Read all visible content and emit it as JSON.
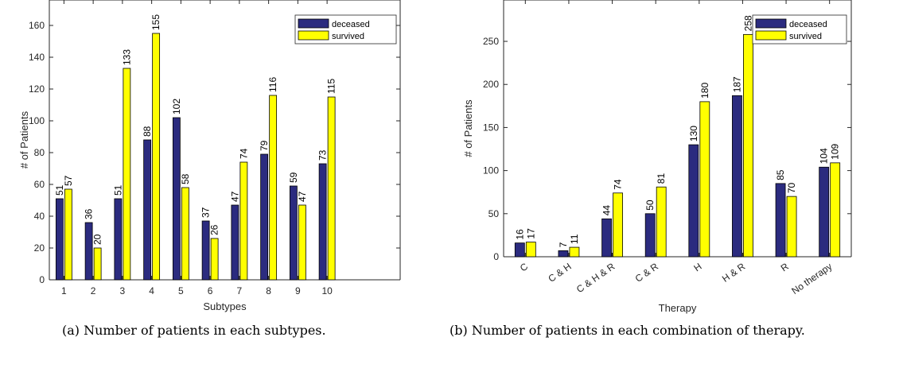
{
  "captions": {
    "a": "(a) Number of patients in each subtypes.",
    "b": "(b) Number of patients in each combination of therapy."
  },
  "colors": {
    "deceased": "#2b2b7f",
    "survived": "#ffff00"
  },
  "chart_data": [
    {
      "type": "bar",
      "categories": [
        "1",
        "2",
        "3",
        "4",
        "5",
        "6",
        "7",
        "8",
        "9",
        "10"
      ],
      "series": [
        {
          "name": "deceased",
          "values": [
            51,
            36,
            51,
            88,
            102,
            37,
            47,
            79,
            59,
            73
          ]
        },
        {
          "name": "survived",
          "values": [
            57,
            20,
            133,
            155,
            58,
            26,
            74,
            116,
            47,
            115
          ]
        }
      ],
      "xlabel": "Subtypes",
      "ylabel": "# of Patients",
      "ylim": [
        0,
        176
      ],
      "yticks": [
        0,
        20,
        40,
        60,
        80,
        100,
        120,
        140,
        160
      ],
      "legend_position": "top-right",
      "grid": false
    },
    {
      "type": "bar",
      "categories": [
        "C",
        "C & H",
        "C & H & R",
        "C & R",
        "H",
        "H & R",
        "R",
        "No therapy"
      ],
      "series": [
        {
          "name": "deceased",
          "values": [
            16,
            7,
            44,
            50,
            130,
            187,
            85,
            104
          ]
        },
        {
          "name": "survived",
          "values": [
            17,
            11,
            74,
            81,
            180,
            258,
            70,
            109
          ]
        }
      ],
      "xlabel": "Therapy",
      "ylabel": "# of Patients",
      "ylim": [
        0,
        298
      ],
      "yticks": [
        0,
        50,
        100,
        150,
        200,
        250
      ],
      "legend_position": "top-right",
      "grid": false
    }
  ]
}
